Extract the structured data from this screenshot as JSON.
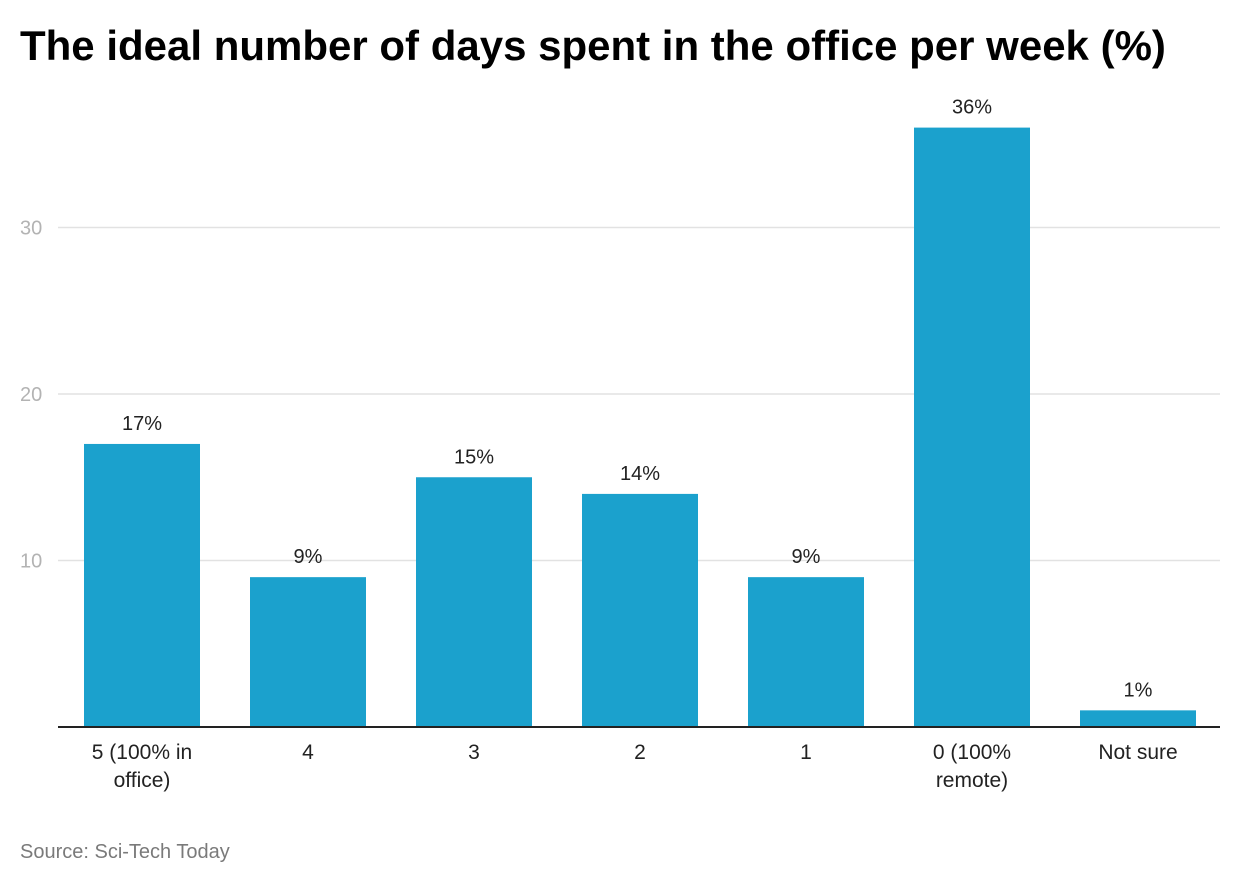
{
  "chart_data": {
    "type": "bar",
    "title": "The ideal number of days spent in the office per week (%)",
    "categories": [
      [
        "5 (100% in",
        "office)"
      ],
      [
        "4"
      ],
      [
        "3"
      ],
      [
        "2"
      ],
      [
        "1"
      ],
      [
        "0 (100%",
        "remote)"
      ],
      [
        "Not sure"
      ]
    ],
    "values": [
      17,
      9,
      15,
      14,
      9,
      36,
      1
    ],
    "value_labels": [
      "17%",
      "9%",
      "15%",
      "14%",
      "9%",
      "36%",
      "1%"
    ],
    "yticks": [
      10,
      20,
      30
    ],
    "ylim": [
      0,
      36
    ],
    "grid": true,
    "bar_color": "#1ba1cd",
    "xlabel": "",
    "ylabel": ""
  },
  "source": "Source: Sci-Tech Today",
  "colors": {
    "grid": "#e2e2e2",
    "axis": "#222222",
    "tick_label": "#b3b3b3",
    "text": "#222222"
  }
}
